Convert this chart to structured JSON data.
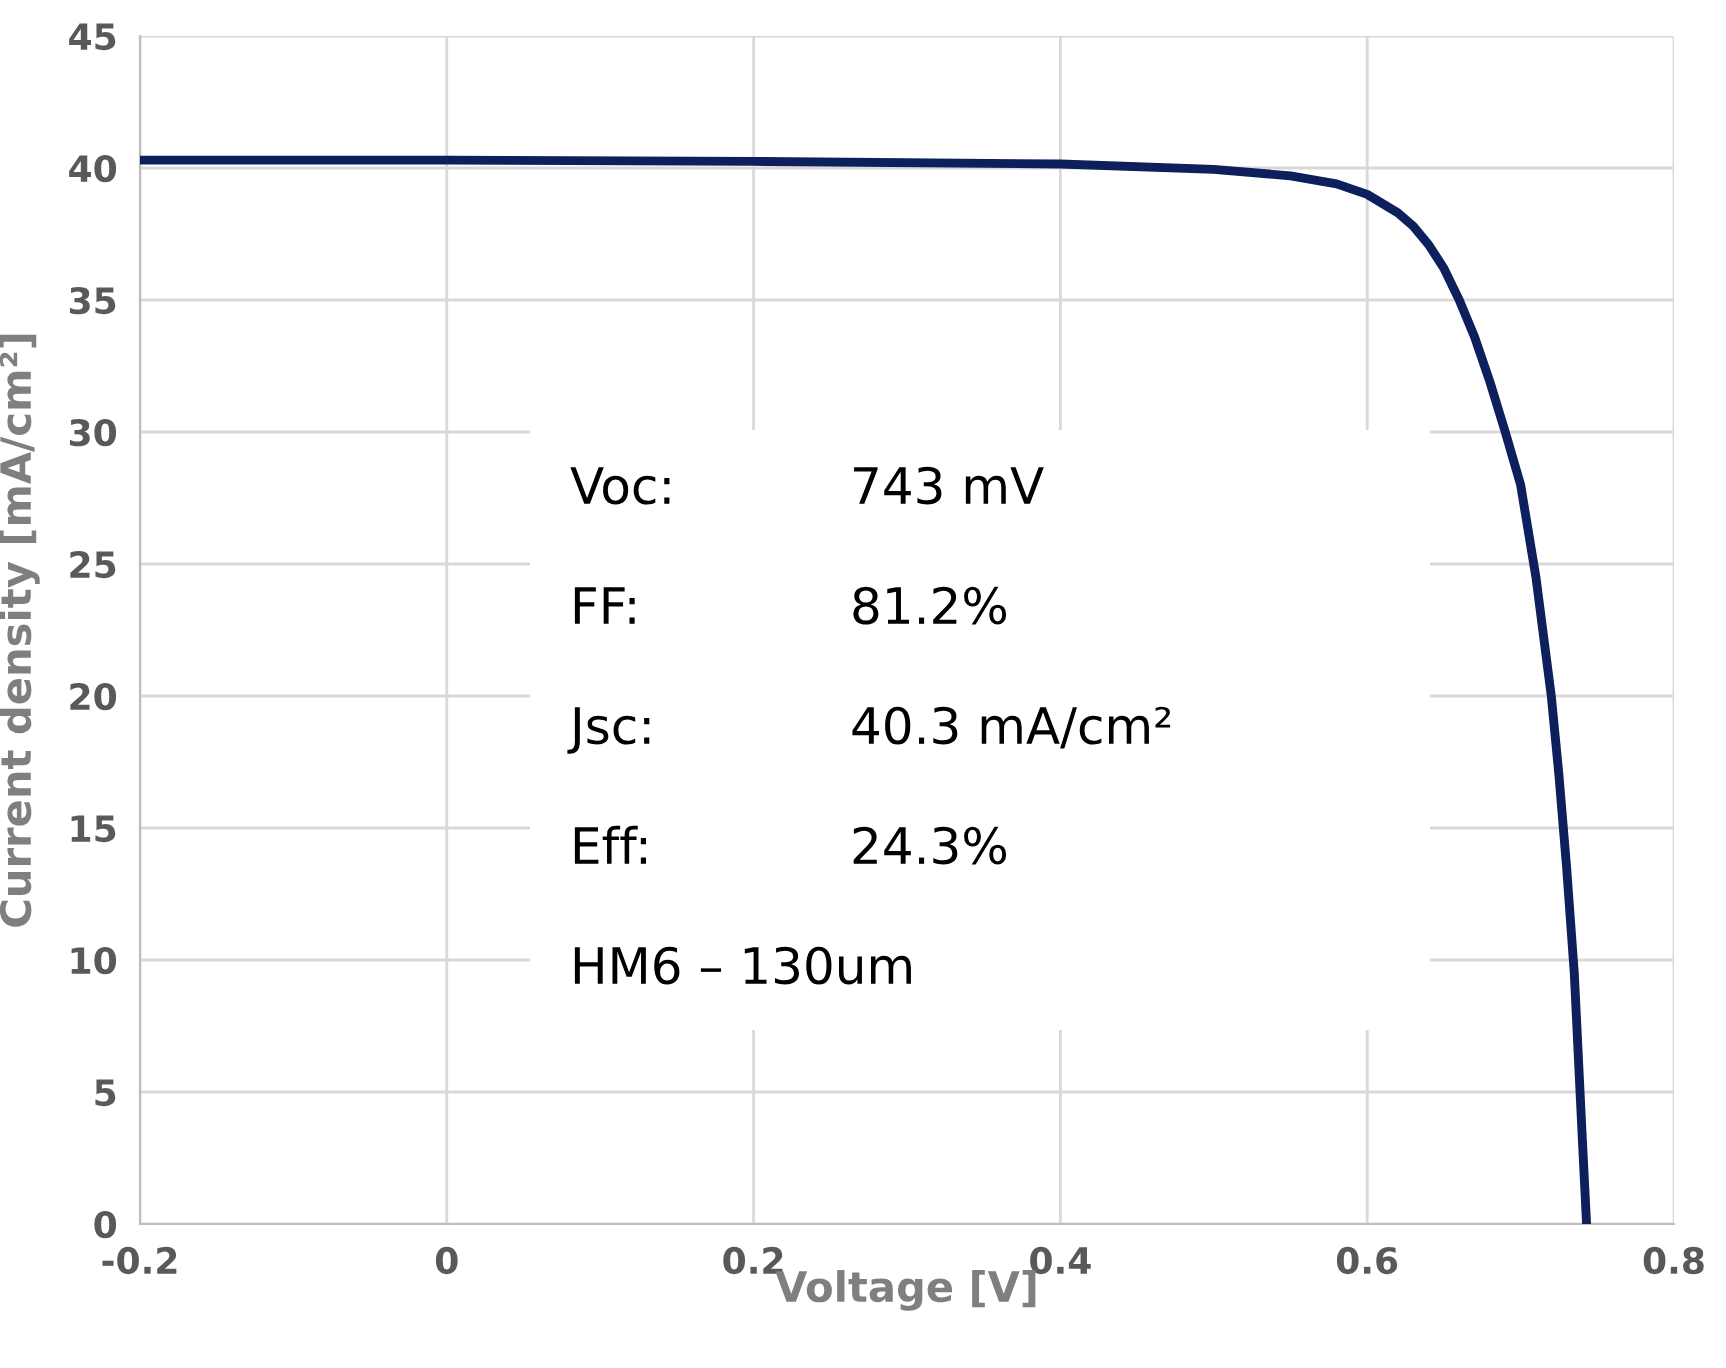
{
  "chart_data": {
    "type": "line",
    "xlabel": "Voltage [V]",
    "ylabel": "Current density [mA/cm²]",
    "x": [
      -0.2,
      0,
      0.2,
      0.4,
      0.5,
      0.55,
      0.58,
      0.6,
      0.62,
      0.63,
      0.64,
      0.65,
      0.66,
      0.67,
      0.68,
      0.69,
      0.7,
      0.71,
      0.72,
      0.725,
      0.73,
      0.735,
      0.74,
      0.743
    ],
    "series": [
      {
        "color": "#0d1f5c",
        "values": [
          40.3,
          40.3,
          40.25,
          40.15,
          39.95,
          39.7,
          39.4,
          39.0,
          38.3,
          37.8,
          37.1,
          36.2,
          35.0,
          33.6,
          31.9,
          30.0,
          28.0,
          24.5,
          20.0,
          17.0,
          13.5,
          9.5,
          3.5,
          0
        ]
      }
    ],
    "xlim": [
      -0.2,
      0.8
    ],
    "xticks": [
      -0.2,
      0,
      0.2,
      0.4,
      0.6,
      0.8
    ],
    "ylim": [
      0,
      45
    ],
    "yticks": [
      0,
      5,
      10,
      15,
      20,
      25,
      30,
      35,
      40,
      45
    ],
    "grid": true,
    "marker": "none",
    "line_style": "solid",
    "annotations": [
      "Voc: 743 mV",
      "FF: 81.2%",
      "Jsc: 40.3 mA/cm²",
      "Eff: 24.3%",
      "HM6 – 130um"
    ]
  }
}
